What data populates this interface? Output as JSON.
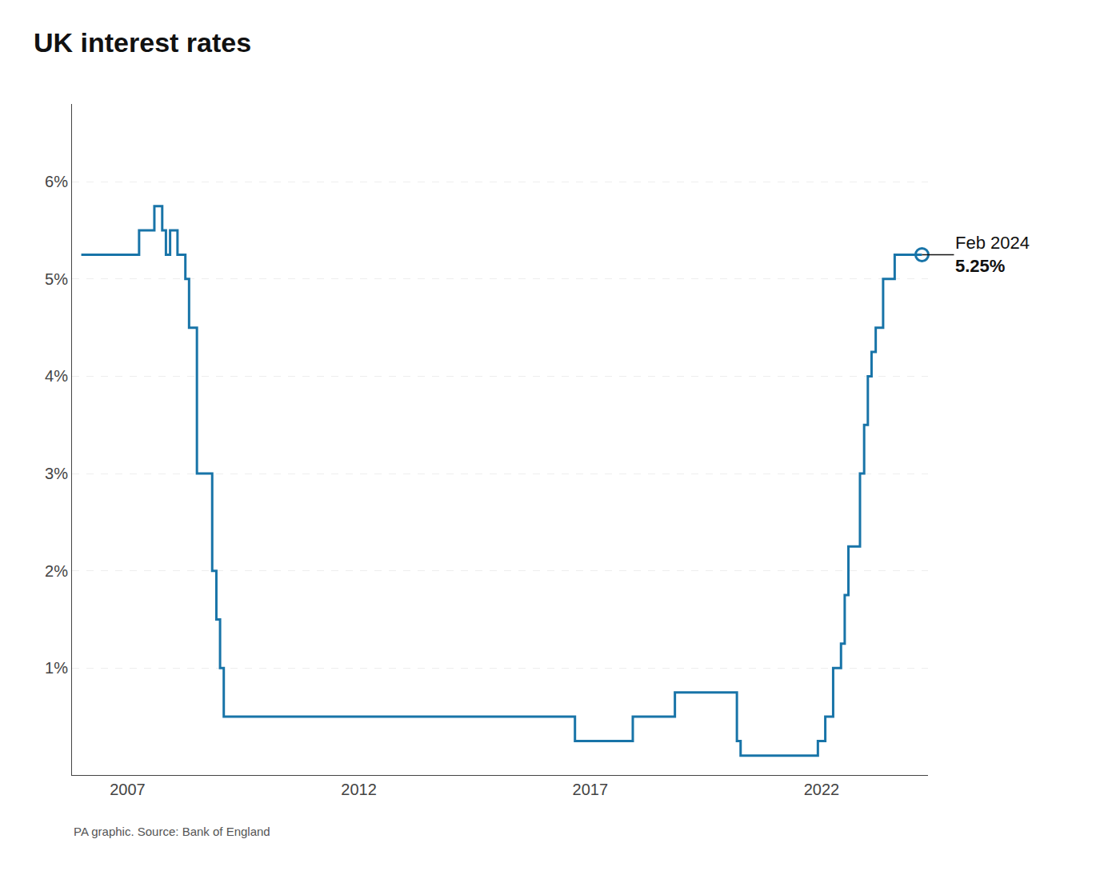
{
  "chart_data": {
    "type": "step",
    "title": "UK interest rates",
    "source": "PA graphic. Source: Bank of England",
    "annotations": [
      "Feb 2024",
      "5.25%"
    ],
    "color": "#1874a8",
    "marker": "circle-open",
    "grid": "y",
    "x": [
      2006.0,
      2006.75,
      2007.08,
      2007.25,
      2007.58,
      2007.75,
      2007.83,
      2007.92,
      2008.0,
      2008.08,
      2008.25,
      2008.33,
      2008.5,
      2008.83,
      2008.92,
      2009.0,
      2009.08,
      2016.42,
      2016.67,
      2017.83,
      2017.92,
      2018.75,
      2018.83,
      2020.08,
      2020.17,
      2020.25,
      2021.92,
      2021.92,
      2022.08,
      2022.25,
      2022.42,
      2022.5,
      2022.58,
      2022.75,
      2022.83,
      2022.92,
      2023.0,
      2023.08,
      2023.17,
      2023.33,
      2023.58,
      2024.17
    ],
    "values": [
      5.25,
      5.25,
      5.25,
      5.5,
      5.75,
      5.5,
      5.25,
      5.5,
      5.5,
      5.25,
      5.0,
      4.5,
      3.0,
      2.0,
      1.5,
      1.0,
      0.5,
      0.5,
      0.25,
      0.25,
      0.5,
      0.5,
      0.75,
      0.75,
      0.25,
      0.1,
      0.1,
      0.25,
      0.5,
      1.0,
      1.25,
      1.75,
      2.25,
      2.25,
      3.0,
      3.5,
      4.0,
      4.25,
      4.5,
      5.0,
      5.25,
      5.25
    ],
    "xlim": [
      2005.8,
      2024.3
    ],
    "xticks": [
      2007,
      2012,
      2017,
      2022
    ],
    "ylim": [
      -0.1,
      6.8
    ],
    "yticks": [
      {
        "value": 1,
        "label": "1%"
      },
      {
        "value": 2,
        "label": "2%"
      },
      {
        "value": 3,
        "label": "3%"
      },
      {
        "value": 4,
        "label": "4%"
      },
      {
        "value": 5,
        "label": "5%"
      },
      {
        "value": 6,
        "label": "6%"
      }
    ]
  }
}
